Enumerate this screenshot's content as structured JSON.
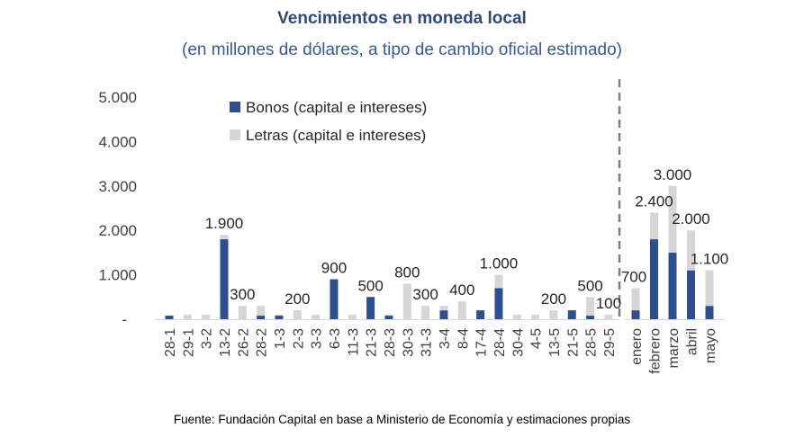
{
  "title": "Vencimientos en moneda local",
  "subtitle": "(en millones de dólares, a tipo de cambio oficial estimado)",
  "source": "Fuente: Fundación Capital en base a Ministerio de Economía y estimaciones propias",
  "colors": {
    "bonos": "#2e4f8f",
    "letras": "#d6d6d6",
    "axis_text": "#404040",
    "divider": "#7f7f7f"
  },
  "chart_data": {
    "type": "bar",
    "stacked": true,
    "title": "Vencimientos en moneda local",
    "subtitle": "(en millones de dólares, a tipo de cambio oficial estimado)",
    "ylim": [
      0,
      5000
    ],
    "yticks": [
      "-",
      "1.000",
      "2.000",
      "3.000",
      "4.000",
      "5.000"
    ],
    "ytick_values": [
      0,
      1000,
      2000,
      3000,
      4000,
      5000
    ],
    "grid": false,
    "legend_position": "top-left",
    "categories": [
      "28-1",
      "29-1",
      "3-2",
      "13-2",
      "26-2",
      "28-2",
      "1-3",
      "2-3",
      "3-3",
      "6-3",
      "11-3",
      "21-3",
      "28-3",
      "30-3",
      "31-3",
      "3-4",
      "8-4",
      "17-4",
      "28-4",
      "30-4",
      "4-5",
      "13-5",
      "21-5",
      "28-5",
      "29-5",
      "enero",
      "febrero",
      "marzo",
      "abril",
      "mayo"
    ],
    "series": [
      {
        "name": "Bonos (capital e intereses)",
        "values": [
          80,
          0,
          0,
          1800,
          0,
          80,
          80,
          0,
          0,
          900,
          0,
          500,
          80,
          0,
          0,
          200,
          0,
          200,
          700,
          0,
          0,
          0,
          200,
          80,
          0,
          200,
          1800,
          1500,
          1100,
          300
        ]
      },
      {
        "name": "Letras (capital e intereses)",
        "values": [
          0,
          100,
          100,
          100,
          300,
          220,
          20,
          200,
          100,
          0,
          100,
          0,
          20,
          800,
          300,
          100,
          400,
          0,
          300,
          100,
          100,
          200,
          0,
          420,
          100,
          500,
          600,
          1500,
          900,
          800
        ]
      }
    ],
    "data_labels": [
      {
        "category": "13-2",
        "text": "1.900"
      },
      {
        "category": "26-2",
        "text": "300"
      },
      {
        "category": "2-3",
        "text": "200"
      },
      {
        "category": "6-3",
        "text": "900"
      },
      {
        "category": "21-3",
        "text": "500"
      },
      {
        "category": "30-3",
        "text": "800"
      },
      {
        "category": "31-3",
        "text": "300"
      },
      {
        "category": "8-4",
        "text": "400"
      },
      {
        "category": "28-4",
        "text": "1.000"
      },
      {
        "category": "13-5",
        "text": "200"
      },
      {
        "category": "28-5",
        "text": "500"
      },
      {
        "category": "29-5",
        "text": "100"
      },
      {
        "category": "enero",
        "text": "700"
      },
      {
        "category": "febrero",
        "text": "2.400"
      },
      {
        "category": "marzo",
        "text": "3.000"
      },
      {
        "category": "abril",
        "text": "2.000"
      },
      {
        "category": "mayo",
        "text": "1.100"
      }
    ],
    "divider_before": "enero"
  }
}
